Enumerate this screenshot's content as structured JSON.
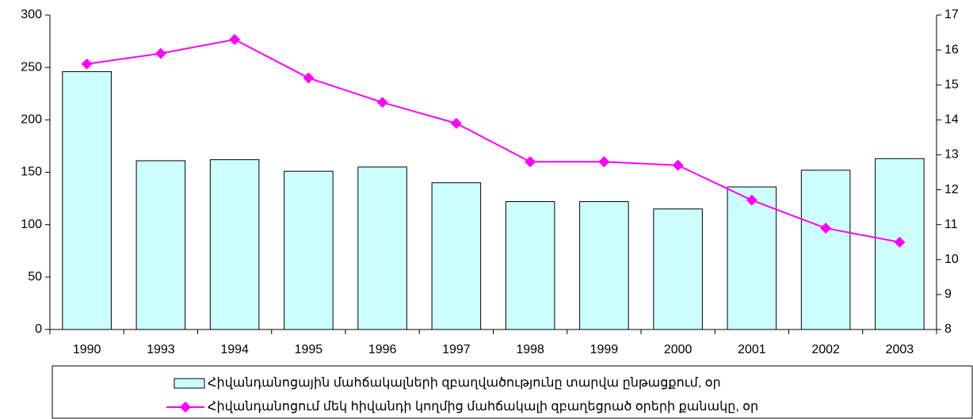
{
  "chart_data": {
    "type": "bar-line",
    "categories": [
      "1990",
      "1993",
      "1994",
      "1995",
      "1996",
      "1997",
      "1998",
      "1999",
      "2000",
      "2001",
      "2002",
      "2003"
    ],
    "series": [
      {
        "name": "Հիվանդանոցային մահճակալների զբաղվածությունը տարվա ընթացքում, օր",
        "type": "bar",
        "color": "#ccffff",
        "values": [
          246,
          161,
          162,
          151,
          155,
          140,
          122,
          122,
          115,
          136,
          152,
          163
        ]
      },
      {
        "name": "Հիվանդանոցում մեկ հիվանդի կողմից մահճակալի զբաղեցրած օրերի քանակը, օր",
        "type": "line",
        "axis": "y2",
        "color": "#ff00ff",
        "values": [
          15.6,
          15.9,
          16.3,
          15.2,
          14.5,
          13.9,
          12.8,
          12.8,
          12.7,
          11.7,
          10.9,
          10.5
        ]
      }
    ],
    "ylim": [
      0,
      300
    ],
    "yticks": [
      0,
      50,
      100,
      150,
      200,
      250,
      300
    ],
    "y2lim": [
      8,
      17
    ],
    "y2ticks": [
      8,
      9,
      10,
      11,
      12,
      13,
      14,
      15,
      16,
      17
    ]
  }
}
